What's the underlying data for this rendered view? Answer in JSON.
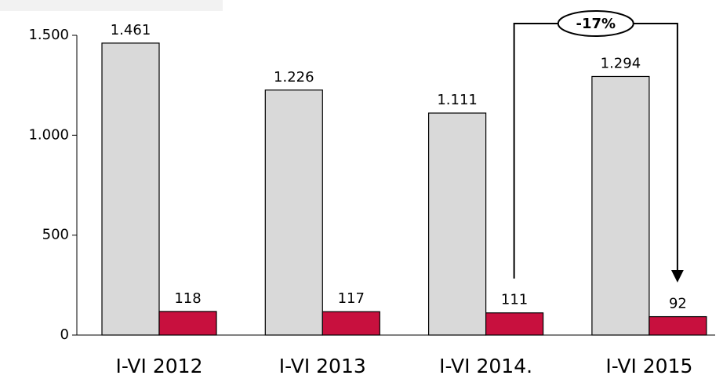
{
  "chart_data": {
    "type": "bar",
    "categories": [
      "I-VI 2012",
      "I-VI 2013",
      "I-VI 2014.",
      "I-VI 2015"
    ],
    "series": [
      {
        "color": "#d9d9d9",
        "values": [
          1461,
          1226,
          1111,
          1294
        ],
        "value_labels": [
          "1.461",
          "1.226",
          "1.111",
          "1.294"
        ]
      },
      {
        "color": "#c8103e",
        "values": [
          118,
          117,
          111,
          92
        ],
        "value_labels": [
          "118",
          "117",
          "111",
          "92"
        ]
      }
    ],
    "ylim": [
      0,
      1500
    ],
    "yticks": [
      0,
      500,
      {
        "value": 1000,
        "label": "1.000"
      },
      {
        "value": 1500,
        "label": "1.500"
      }
    ],
    "annotation": "-17%"
  }
}
